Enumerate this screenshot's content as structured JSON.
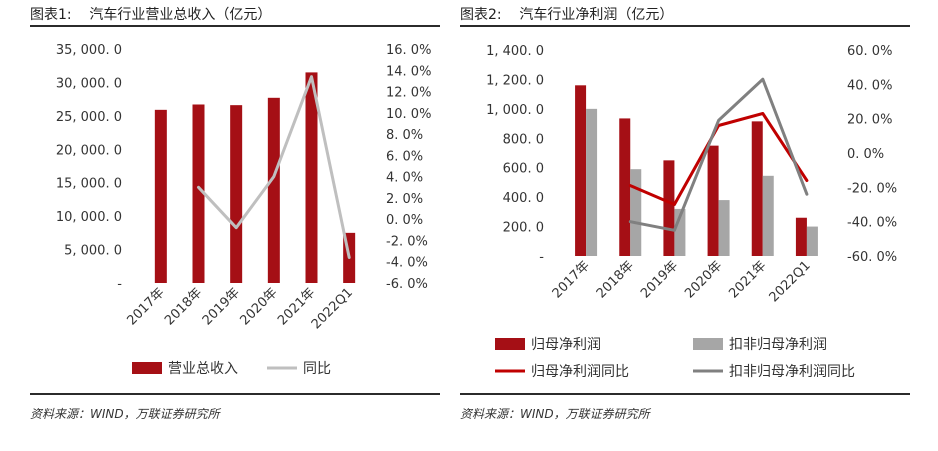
{
  "figure1": {
    "caption": "图表1:    汽车行业营业总收入（亿元）",
    "source": "资料来源：WIND，万联证券研究所"
  },
  "figure2": {
    "caption": "图表2:    汽车行业净利润（亿元）",
    "source": "资料来源：WIND，万联证券研究所"
  },
  "chart_data": [
    {
      "type": "bar",
      "categories": [
        "2017年",
        "2018年",
        "2019年",
        "2020年",
        "2021年",
        "2022Q1"
      ],
      "y_ticks": [
        "-",
        "5, 000. 0",
        "10, 000. 0",
        "15, 000. 0",
        "20, 000. 0",
        "25, 000. 0",
        "30, 000. 0",
        "35, 000. 0"
      ],
      "y2_ticks": [
        "-6. 0%",
        "-4. 0%",
        "-2. 0%",
        "0. 0%",
        "2. 0%",
        "4. 0%",
        "6. 0%",
        "8. 0%",
        "10. 0%",
        "12. 0%",
        "14. 0%",
        "16. 0%"
      ],
      "ylim": [
        0,
        35000
      ],
      "y2lim": [
        -6,
        16
      ],
      "series": [
        {
          "name": "营业总收入",
          "kind": "bar",
          "axis": "left",
          "color": "#a50f15",
          "values": [
            25900,
            26700,
            26600,
            27700,
            31500,
            7500
          ]
        },
        {
          "name": "同比",
          "kind": "line",
          "axis": "right",
          "color": "#bfbfbf",
          "values": [
            null,
            3.0,
            -0.8,
            4.0,
            13.4,
            -3.6
          ]
        }
      ]
    },
    {
      "type": "bar",
      "categories": [
        "2017年",
        "2018年",
        "2019年",
        "2020年",
        "2021年",
        "2022Q1"
      ],
      "y_ticks": [
        "-",
        "200. 0",
        "400. 0",
        "600. 0",
        "800. 0",
        "1, 000. 0",
        "1, 200. 0",
        "1, 400. 0"
      ],
      "y2_ticks": [
        "-60. 0%",
        "-40. 0%",
        "-20. 0%",
        "0. 0%",
        "20. 0%",
        "40. 0%",
        "60. 0%"
      ],
      "ylim": [
        0,
        1400
      ],
      "y2lim": [
        -60,
        60
      ],
      "series": [
        {
          "name": "归母净利润",
          "kind": "bar",
          "axis": "left",
          "color": "#a50f15",
          "values": [
            1160,
            935,
            650,
            750,
            915,
            260
          ]
        },
        {
          "name": "扣非归母净利润",
          "kind": "bar",
          "axis": "left",
          "color": "#a6a6a6",
          "values": [
            1000,
            590,
            320,
            380,
            545,
            200
          ]
        },
        {
          "name": "归母净利润同比",
          "kind": "line",
          "axis": "right",
          "color": "#c00000",
          "values": [
            null,
            -19,
            -30,
            16,
            23,
            -16
          ]
        },
        {
          "name": "扣非归母净利润同比",
          "kind": "line",
          "axis": "right",
          "color": "#808080",
          "values": [
            null,
            -40,
            -45,
            19,
            43,
            -24
          ]
        }
      ]
    }
  ]
}
